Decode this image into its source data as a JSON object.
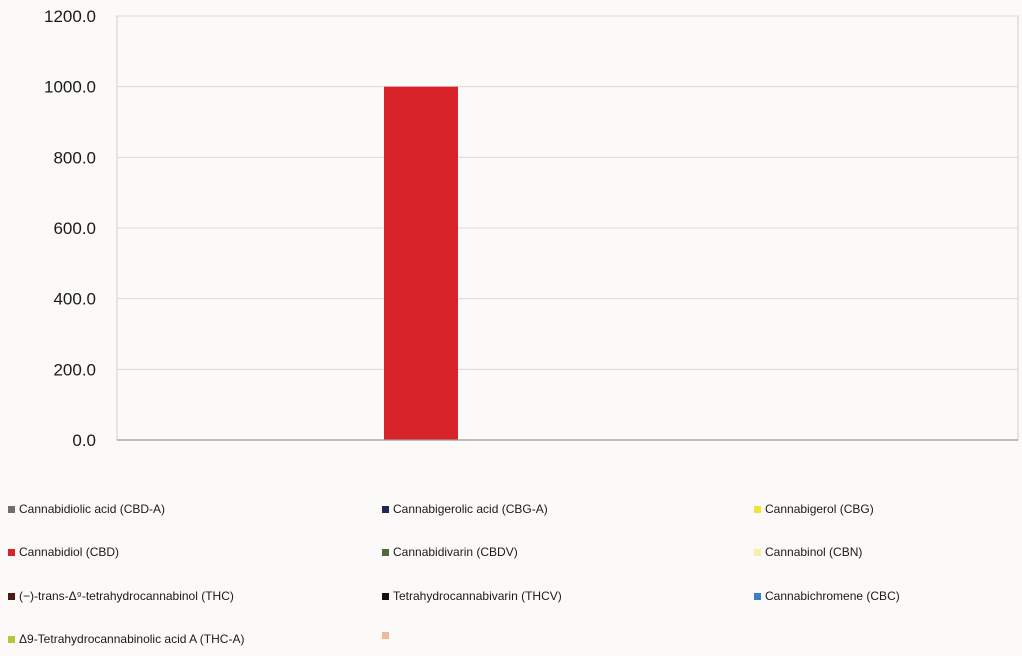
{
  "chart_data": {
    "type": "bar",
    "categories": [
      ""
    ],
    "series": [
      {
        "name": "Cannabidiolic acid (CBD-A)",
        "color": "#6e6e6e",
        "values": [
          0
        ]
      },
      {
        "name": "Cannabidiol (CBD)",
        "color": "#d8232a",
        "values": [
          1000.0
        ]
      },
      {
        "name": "(−)-trans-Δ⁹-tetrahydrocannabinol (THC)",
        "color": "#4a1a1a",
        "values": [
          0
        ]
      },
      {
        "name": "Δ9-Tetrahydrocannabinolic acid A (THC-A)",
        "color": "#b9c43a",
        "values": [
          0
        ]
      },
      {
        "name": "Cannabigerolic acid (CBG-A)",
        "color": "#1c2c55",
        "values": [
          0
        ]
      },
      {
        "name": "Cannabidivarin (CBDV)",
        "color": "#4f6b3a",
        "values": [
          0
        ]
      },
      {
        "name": "Tetrahydrocannabivarin (THCV)",
        "color": "#111111",
        "values": [
          0
        ]
      },
      {
        "name": "",
        "color": "#f2b79b",
        "values": [
          0
        ]
      },
      {
        "name": "Cannabigerol (CBG)",
        "color": "#f3e23a",
        "values": [
          0
        ]
      },
      {
        "name": "Cannabinol (CBN)",
        "color": "#f5f0a8",
        "values": [
          0
        ]
      },
      {
        "name": "Cannabichromene (CBC)",
        "color": "#3a7fc8",
        "values": [
          0
        ]
      }
    ],
    "ylim": [
      0,
      1200
    ],
    "yticks": [
      "0.0",
      "200.0",
      "400.0",
      "600.0",
      "800.0",
      "1000.0",
      "1200.0"
    ],
    "grid": true,
    "legend_position": "bottom",
    "title": "",
    "xlabel": "",
    "ylabel": ""
  }
}
